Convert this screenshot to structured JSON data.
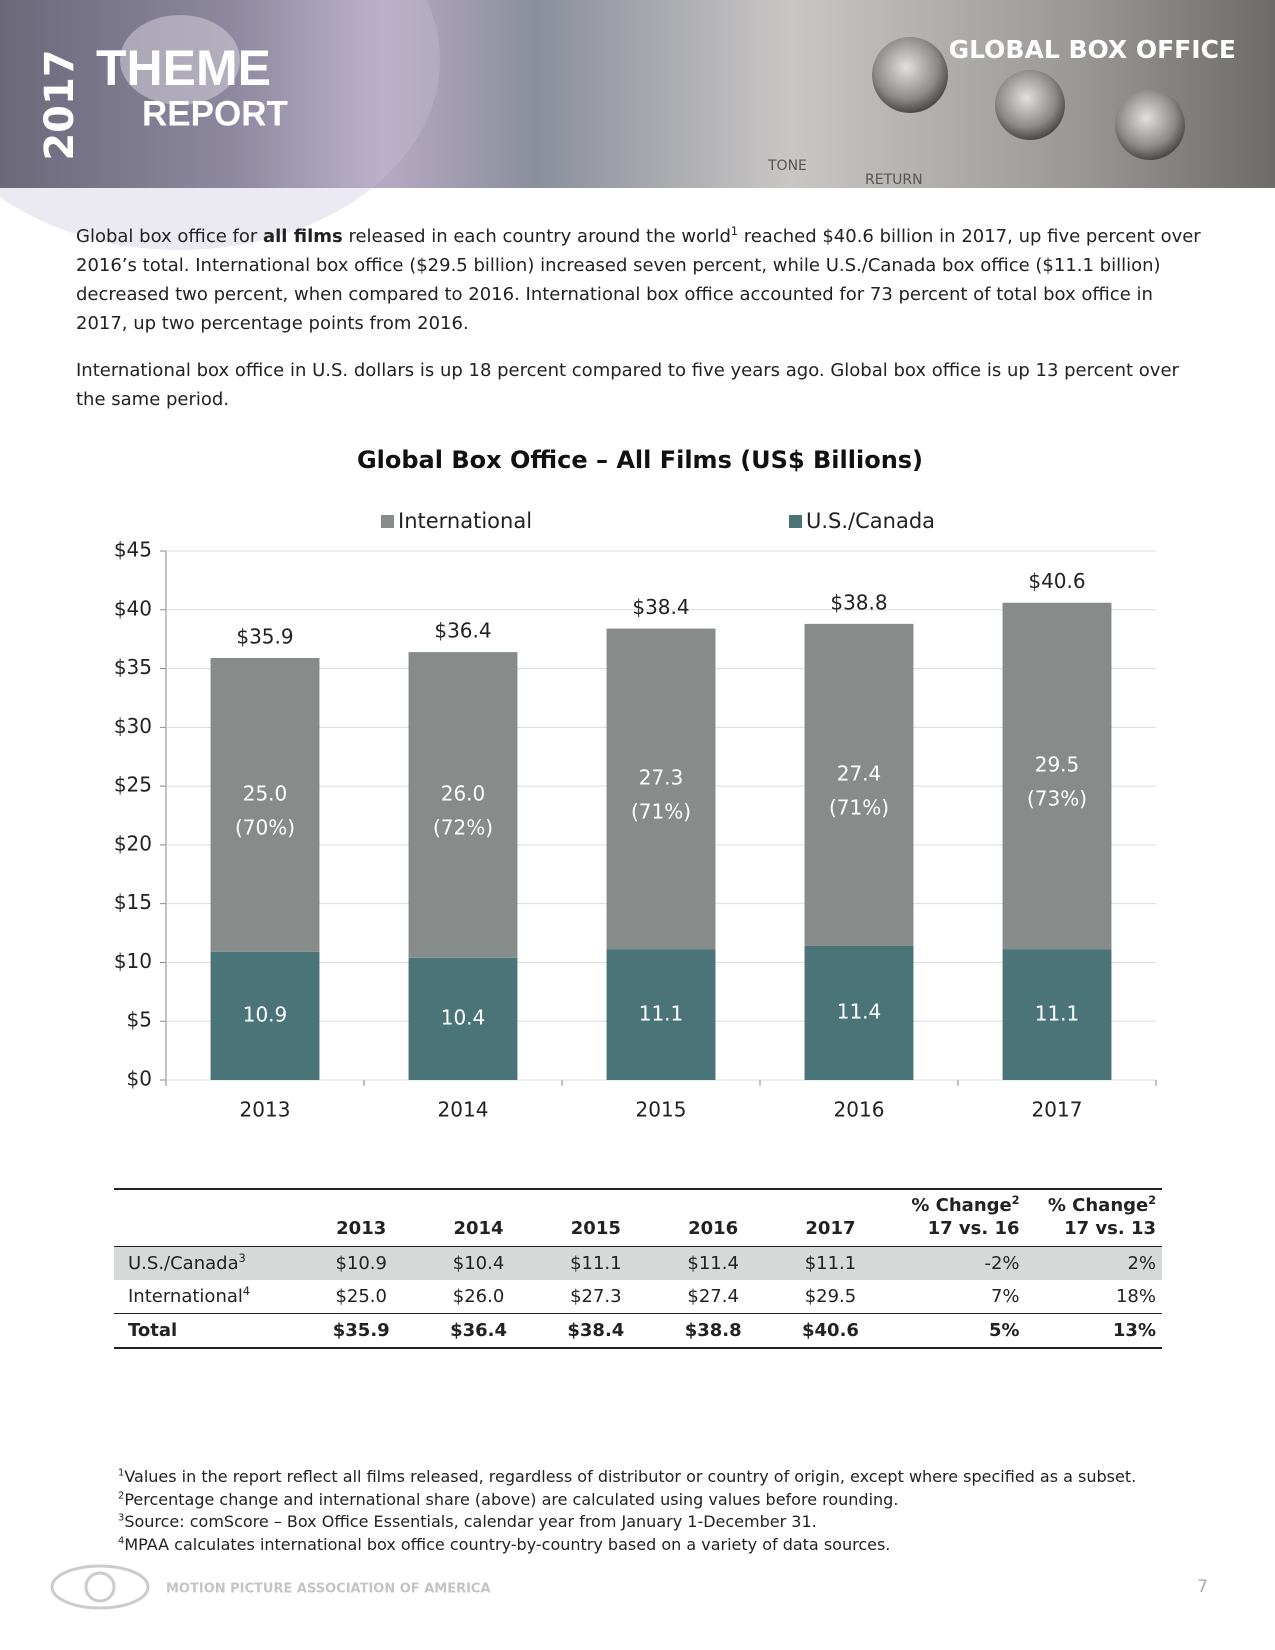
{
  "header": {
    "year": "2017",
    "title": "THEME",
    "subtitle": "REPORT",
    "section": "GLOBAL BOX OFFICE",
    "photo_labels": [
      "TONE",
      "RETURN"
    ]
  },
  "paragraphs": [
    [
      "Global box office for ",
      "all films",
      " released in each country around the world",
      "1",
      " reached $40.6 billion in 2017, up five percent over 2016’s total. International box office ($29.5 billion) increased seven percent, while U.S./Canada box office ($11.1 billion) decreased two percent, when compared to 2016. International box office accounted for 73 percent of total box office in 2017, up two percentage points from 2016."
    ],
    [
      "International box office in U.S. dollars is up 18 percent compared to five years ago. Global box office is up 13 percent over the same period."
    ]
  ],
  "chart_data": {
    "type": "stacked_bar",
    "title": "Global Box Office – All Films (US$ Billions)",
    "categories": [
      "2013",
      "2014",
      "2015",
      "2016",
      "2017"
    ],
    "series": [
      {
        "name": "International",
        "color": "#878c8b",
        "values": [
          25.0,
          26.0,
          27.3,
          27.4,
          29.5
        ],
        "value_labels": [
          "25.0",
          "26.0",
          "27.3",
          "27.4",
          "29.5"
        ],
        "shares": [
          70,
          72,
          71,
          71,
          73
        ],
        "share_labels": [
          "(70%)",
          "(72%)",
          "(71%)",
          "(71%)",
          "(73%)"
        ]
      },
      {
        "name": "U.S./Canada",
        "color": "#4a7478",
        "values": [
          10.9,
          10.4,
          11.1,
          11.4,
          11.1
        ],
        "value_labels": [
          "10.9",
          "10.4",
          "11.1",
          "11.4",
          "11.1"
        ]
      }
    ],
    "totals": [
      35.9,
      36.4,
      38.4,
      38.8,
      40.6
    ],
    "total_labels": [
      "$35.9",
      "$36.4",
      "$38.4",
      "$38.8",
      "$40.6"
    ],
    "ylim": [
      0,
      45
    ],
    "yticks": [
      {
        "value": 0,
        "label": "$0"
      },
      {
        "value": 5,
        "label": "$5"
      },
      {
        "value": 10,
        "label": "$10"
      },
      {
        "value": 15,
        "label": "$15"
      },
      {
        "value": 20,
        "label": "$20"
      },
      {
        "value": 25,
        "label": "$25"
      },
      {
        "value": 30,
        "label": "$30"
      },
      {
        "value": 35,
        "label": "$35"
      },
      {
        "value": 40,
        "label": "$40"
      },
      {
        "value": 45,
        "label": "$45"
      }
    ],
    "grid": true,
    "legend": "top"
  },
  "table": {
    "columns": [
      {
        "label": "2013"
      },
      {
        "label": "2014"
      },
      {
        "label": "2015"
      },
      {
        "label": "2016"
      },
      {
        "label": "2017"
      },
      {
        "label": "% Change",
        "note": "2",
        "sub": "17 vs. 16"
      },
      {
        "label": "% Change",
        "note": "2",
        "sub": "17 vs. 13"
      }
    ],
    "rows": [
      {
        "label": "U.S./Canada",
        "note": "3",
        "cells": [
          "$10.9",
          "$10.4",
          "$11.1",
          "$11.4",
          "$11.1",
          "-2%",
          "2%"
        ]
      },
      {
        "label": "International",
        "note": "4",
        "cells": [
          "$25.0",
          "$26.0",
          "$27.3",
          "$27.4",
          "$29.5",
          "7%",
          "18%"
        ]
      },
      {
        "label": "Total",
        "cells": [
          "$35.9",
          "$36.4",
          "$38.4",
          "$38.8",
          "$40.6",
          "5%",
          "13%"
        ]
      }
    ]
  },
  "footnotes": [
    {
      "mark": "1",
      "text": "Values in the report reflect all films released, regardless of distributor or country of origin, except where specified as a subset."
    },
    {
      "mark": "2",
      "text": "Percentage change and international share (above) are calculated using values before rounding."
    },
    {
      "mark": "3",
      "text": "Source:  comScore – Box Office Essentials, calendar year from January 1-December 31."
    },
    {
      "mark": "4",
      "text": "MPAA calculates international box office country-by-country based on a variety of data sources."
    }
  ],
  "footer": {
    "organization": "MOTION PICTURE ASSOCIATION OF AMERICA",
    "page_number": "7"
  }
}
